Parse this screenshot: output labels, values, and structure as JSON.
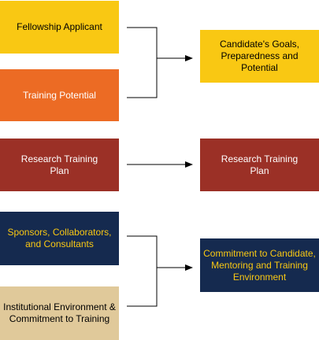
{
  "inputs": [
    {
      "label": "Fellowship Applicant"
    },
    {
      "label": "Training Potential"
    },
    {
      "label": "Research Training Plan"
    },
    {
      "label": "Sponsors, Collaborators, and Consultants"
    },
    {
      "label": "Institutional Environment & Commitment to Training"
    }
  ],
  "outcomes": [
    {
      "label": "Candidate's Goals, Preparedness and Potential"
    },
    {
      "label": "Research Training Plan"
    },
    {
      "label": "Commitment to Candidate, Mentoring and Training Environment"
    }
  ],
  "colors": {
    "yellow": "#f9c813",
    "orange": "#ec6b24",
    "red": "#9b3026",
    "navy": "#152a4f",
    "tan": "#e0c99a"
  }
}
